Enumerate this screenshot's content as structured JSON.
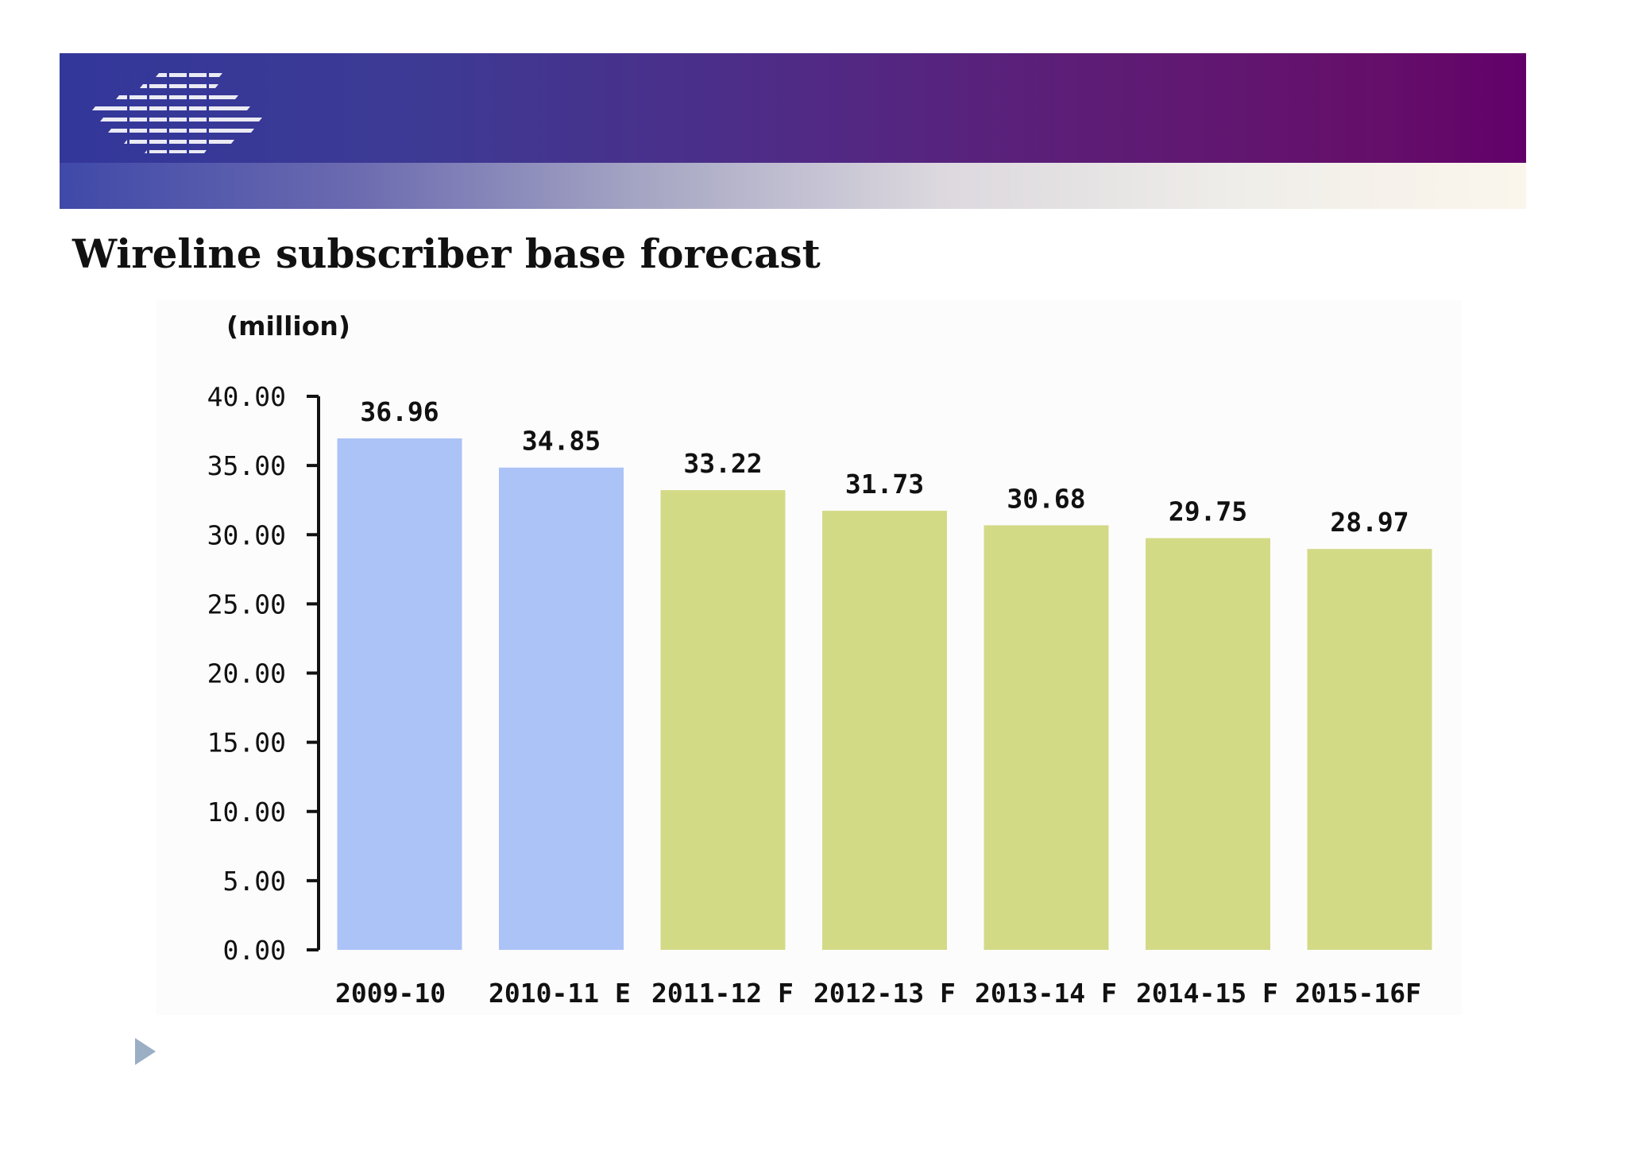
{
  "slide": {
    "title": "Wireline subscriber base forecast"
  },
  "colors": {
    "actual": "#abc3f6",
    "forecast": "#d3da86",
    "banner_start": "#33379a",
    "banner_end": "#62006a"
  },
  "icons": {
    "logo": "striped-logo-icon",
    "next": "play-triangle-icon"
  },
  "chart_data": {
    "type": "bar",
    "ylabel": "(million)",
    "ylim": [
      0,
      40
    ],
    "yticks": [
      "0.00",
      "5.00",
      "10.00",
      "15.00",
      "20.00",
      "25.00",
      "30.00",
      "35.00",
      "40.00"
    ],
    "categories": [
      "2009-10",
      "2010-11 E",
      "2011-12 F",
      "2012-13 F",
      "2013-14 F",
      "2014-15 F",
      "2015-16F"
    ],
    "values": [
      36.96,
      34.85,
      33.22,
      31.73,
      30.68,
      29.75,
      28.97
    ],
    "value_labels": [
      "36.96",
      "34.85",
      "33.22",
      "31.73",
      "30.68",
      "29.75",
      "28.97"
    ],
    "bar_kind": [
      "actual",
      "actual",
      "forecast",
      "forecast",
      "forecast",
      "forecast",
      "forecast"
    ],
    "grid": false,
    "legend": "none"
  }
}
